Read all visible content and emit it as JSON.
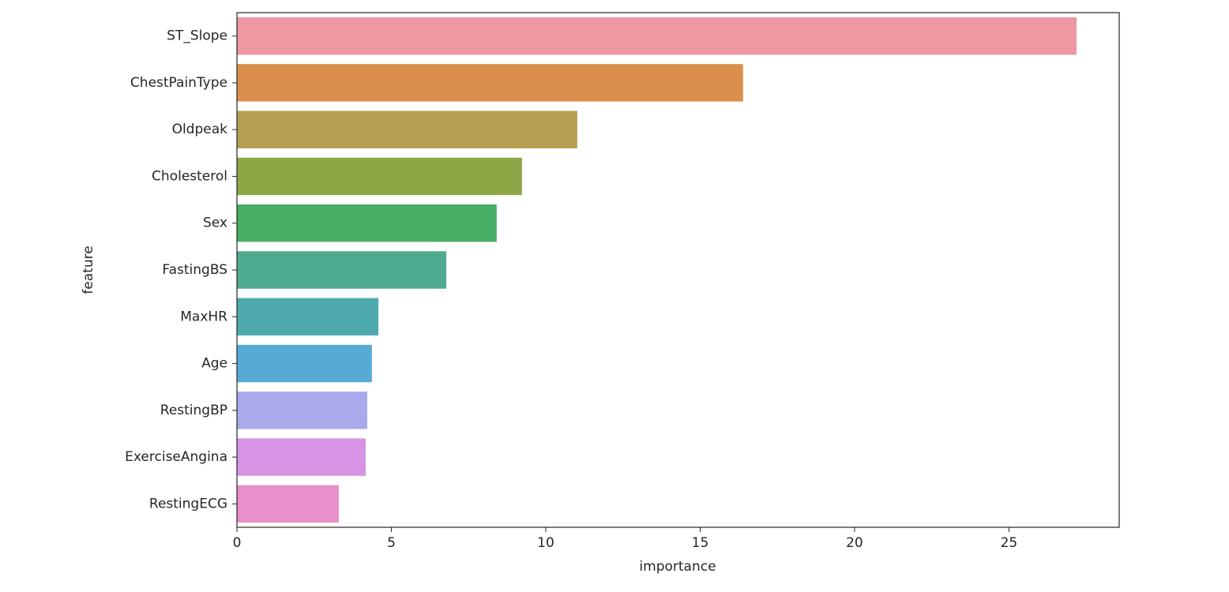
{
  "chart_data": {
    "type": "bar",
    "orientation": "horizontal",
    "categories": [
      "ST_Slope",
      "ChestPainType",
      "Oldpeak",
      "Cholesterol",
      "Sex",
      "FastingBS",
      "MaxHR",
      "Age",
      "RestingBP",
      "ExerciseAngina",
      "RestingECG"
    ],
    "values": [
      27.19,
      16.39,
      11.02,
      9.23,
      8.41,
      6.78,
      4.58,
      4.37,
      4.22,
      4.17,
      3.3
    ],
    "colors": [
      "#ee98a3",
      "#d98f4b",
      "#b59e4f",
      "#8ea645",
      "#4aaf66",
      "#4fab8f",
      "#4eaaae",
      "#55abd3",
      "#a9aaeb",
      "#d794e5",
      "#e98fc9"
    ],
    "xlabel": "importance",
    "ylabel": "feature",
    "xlim": [
      0,
      28.57
    ],
    "xticks": [
      0,
      5,
      10,
      15,
      20,
      25
    ],
    "grid": false
  }
}
